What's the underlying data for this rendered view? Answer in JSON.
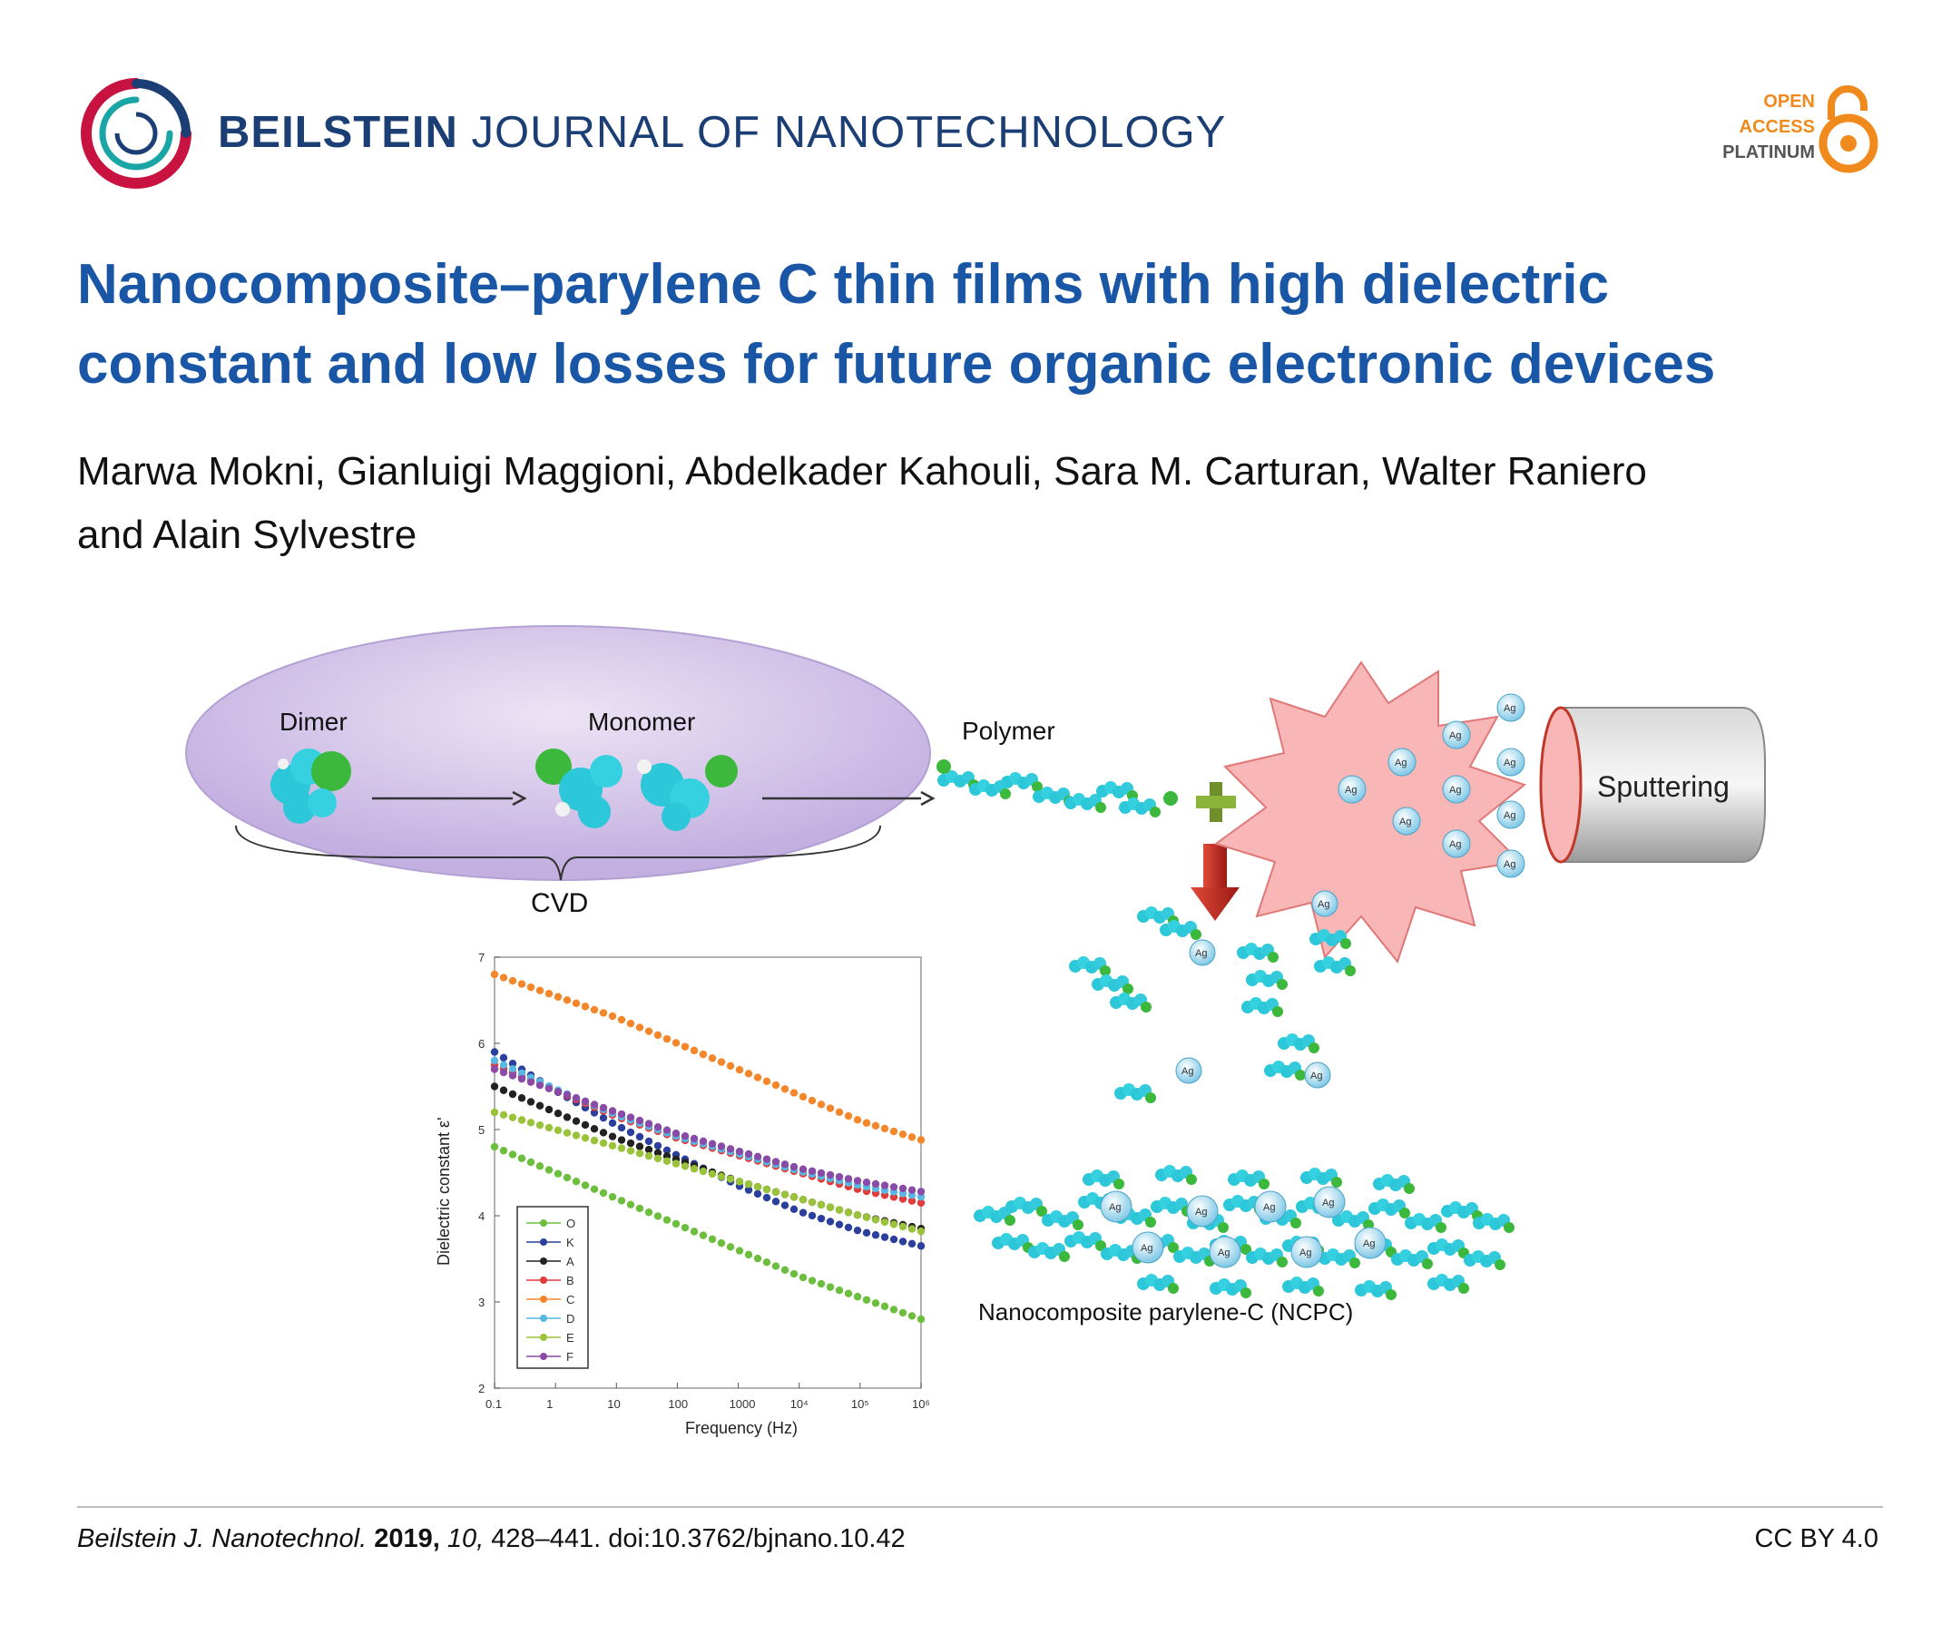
{
  "header": {
    "journal_bold": "BEILSTEIN",
    "journal_rest": "JOURNAL OF NANOTECHNOLOGY",
    "oa_line1": "OPEN",
    "oa_line2": "ACCESS",
    "oa_line3": "PLATINUM"
  },
  "article": {
    "title_line1": "Nanocomposite–parylene C thin films with high dielectric",
    "title_line2": "constant and low losses for future organic electronic devices",
    "authors_line1": "Marwa Mokni, Gianluigi Maggioni, Abdelkader Kahouli, Sara M. Carturan, Walter Raniero",
    "authors_line2": "and Alain Sylvestre"
  },
  "figure": {
    "dimer": "Dimer",
    "monomer": "Monomer",
    "polymer": "Polymer",
    "cvd": "CVD",
    "sputtering": "Sputtering",
    "ag": "Ag",
    "ncpc": "Nanocomposite parylene-C (NCPC)"
  },
  "chart_data": {
    "type": "scatter",
    "xlabel": "Frequency (Hz)",
    "ylabel": "Dielectric constant ε'",
    "xscale": "log",
    "xlim": [
      0.1,
      1000000
    ],
    "ylim": [
      2,
      7
    ],
    "x_tick_labels": [
      "0.1",
      "1",
      "10",
      "100",
      "1000",
      "10⁴",
      "10⁵",
      "10⁶"
    ],
    "y_tick_labels": [
      "2",
      "3",
      "4",
      "5",
      "6",
      "7"
    ],
    "legend_position": "bottom-left",
    "series": [
      {
        "name": "O",
        "color": "#6cbf3c",
        "values": [
          4.8,
          4.5,
          4.2,
          3.9,
          3.6,
          3.3,
          3.05,
          2.8
        ]
      },
      {
        "name": "K",
        "color": "#2b3f9e",
        "values": [
          5.9,
          5.45,
          5.05,
          4.7,
          4.35,
          4.05,
          3.82,
          3.65
        ]
      },
      {
        "name": "A",
        "color": "#222222",
        "values": [
          5.5,
          5.2,
          4.9,
          4.65,
          4.4,
          4.2,
          4.0,
          3.85
        ]
      },
      {
        "name": "B",
        "color": "#e33a3a",
        "values": [
          5.75,
          5.45,
          5.15,
          4.9,
          4.7,
          4.5,
          4.3,
          4.15
        ]
      },
      {
        "name": "C",
        "color": "#f5862a",
        "values": [
          6.8,
          6.55,
          6.3,
          6.0,
          5.7,
          5.4,
          5.1,
          4.88
        ]
      },
      {
        "name": "D",
        "color": "#58b8e4",
        "values": [
          5.8,
          5.47,
          5.17,
          4.92,
          4.72,
          4.52,
          4.35,
          4.22
        ]
      },
      {
        "name": "E",
        "color": "#9ac33a",
        "values": [
          5.2,
          5.0,
          4.8,
          4.6,
          4.4,
          4.2,
          4.0,
          3.82
        ]
      },
      {
        "name": "F",
        "color": "#8a4aa8",
        "values": [
          5.7,
          5.45,
          5.2,
          4.95,
          4.75,
          4.55,
          4.4,
          4.28
        ]
      }
    ]
  },
  "footer": {
    "journal": "Beilstein J. Nanotechnol.",
    "year": "2019,",
    "volume": "10,",
    "rest": "428–441. doi:10.3762/bjnano.10.42",
    "license": "CC BY 4.0"
  }
}
